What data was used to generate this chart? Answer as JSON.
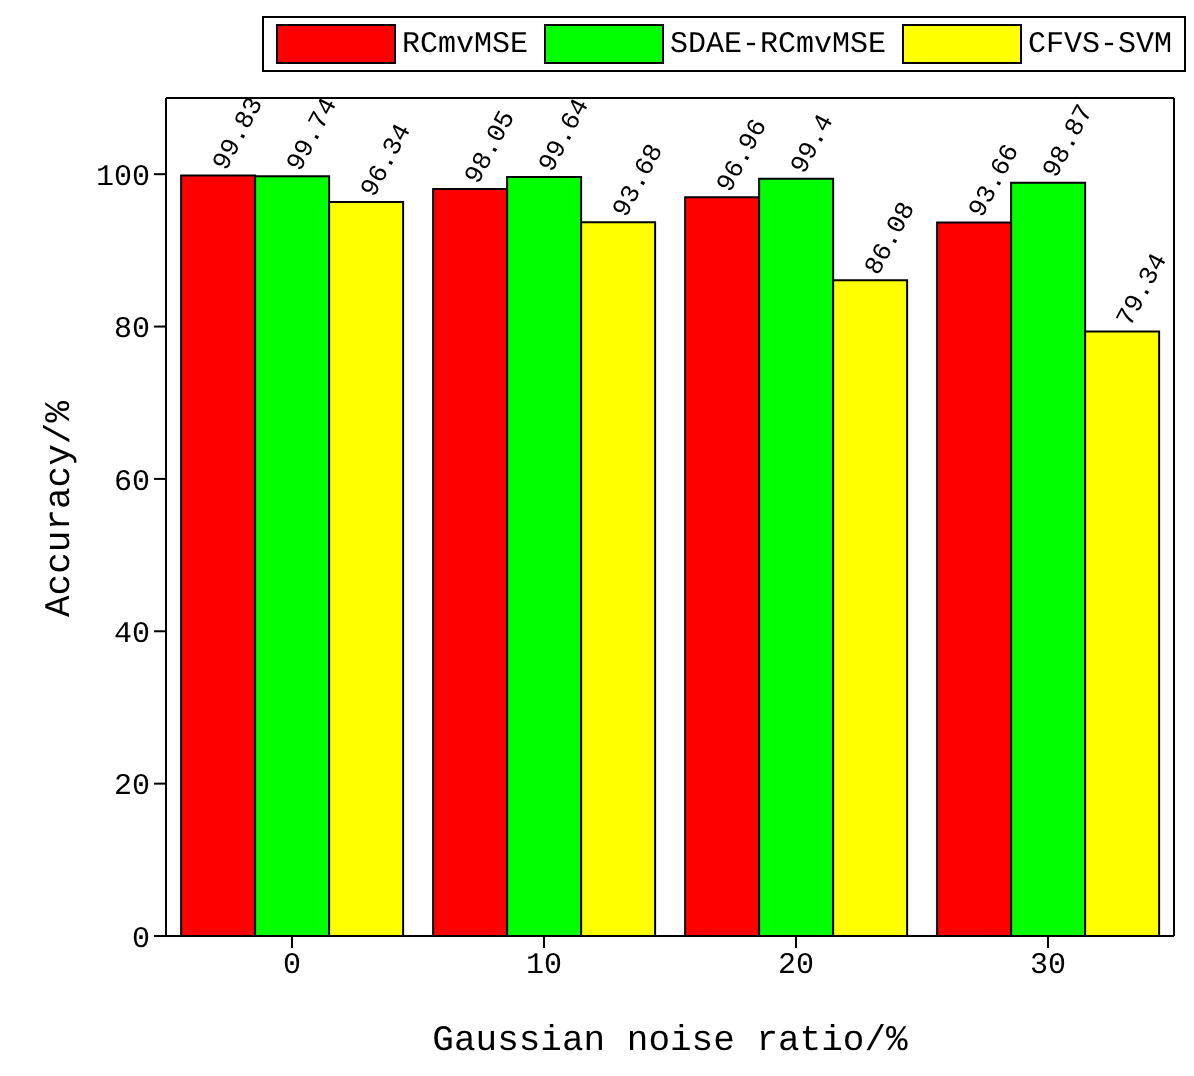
{
  "chart_data": {
    "type": "bar",
    "xlabel": "Gaussian noise ratio/%",
    "ylabel": "Accuracy/%",
    "categories": [
      "0",
      "10",
      "20",
      "30"
    ],
    "series": [
      {
        "name": "RCmvMSE",
        "color": "#ff0000",
        "values": [
          99.83,
          98.05,
          96.96,
          93.66
        ]
      },
      {
        "name": "SDAE-RCmvMSE",
        "color": "#00ff00",
        "values": [
          99.74,
          99.64,
          99.4,
          98.87
        ]
      },
      {
        "name": "CFVS-SVM",
        "color": "#ffff00",
        "values": [
          96.34,
          93.68,
          86.08,
          79.34
        ]
      }
    ],
    "ylim": [
      0,
      110
    ],
    "yticks": [
      0,
      20,
      40,
      60,
      80,
      100
    ],
    "legend": "top right",
    "data_labels": true
  }
}
